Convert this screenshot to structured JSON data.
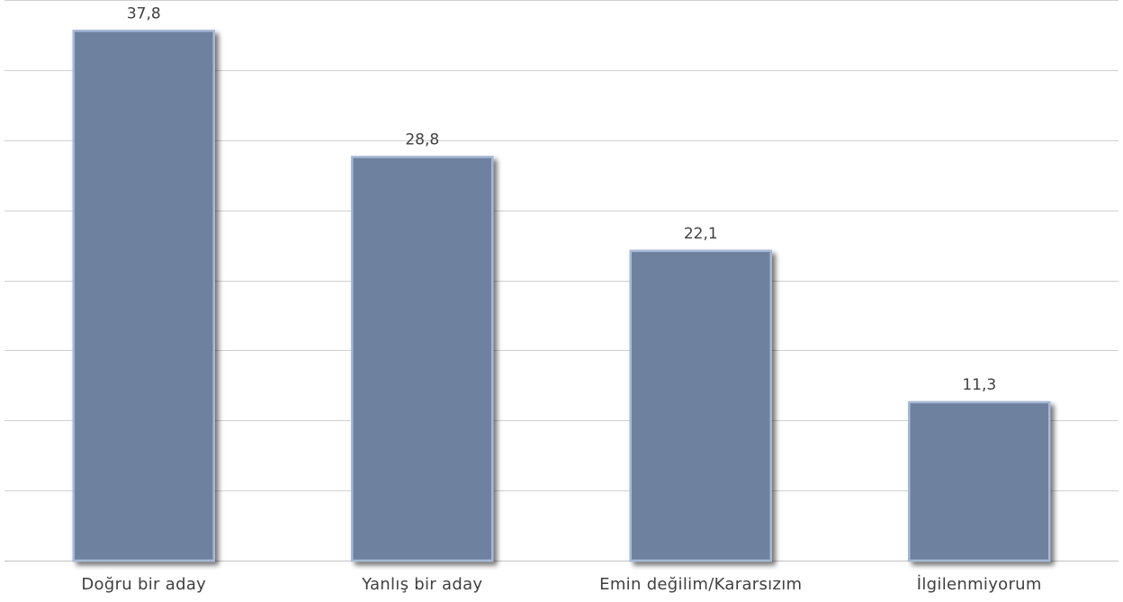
{
  "chart_data": {
    "type": "bar",
    "title": "",
    "xlabel": "",
    "ylabel": "",
    "categories": [
      "Doğru bir aday",
      "Yanlış bir aday",
      "Emin değilim/Kararsızım",
      "İlgilenmiyorum"
    ],
    "values": [
      37.8,
      28.8,
      22.1,
      11.3
    ],
    "data_labels": [
      "37,8",
      "28,8",
      "22,1",
      "11,3"
    ],
    "ylim": [
      0,
      40
    ],
    "y_gridline_step": 5,
    "grid": true,
    "y_tick_labels_visible": false,
    "legend": "none",
    "colors": {
      "bar_fill": "#6e82a0",
      "bar_edge": "#a6b8d6",
      "bar_shadow": "#3c3c3c",
      "gridline": "#d0d0d0",
      "text": "#404040"
    }
  }
}
